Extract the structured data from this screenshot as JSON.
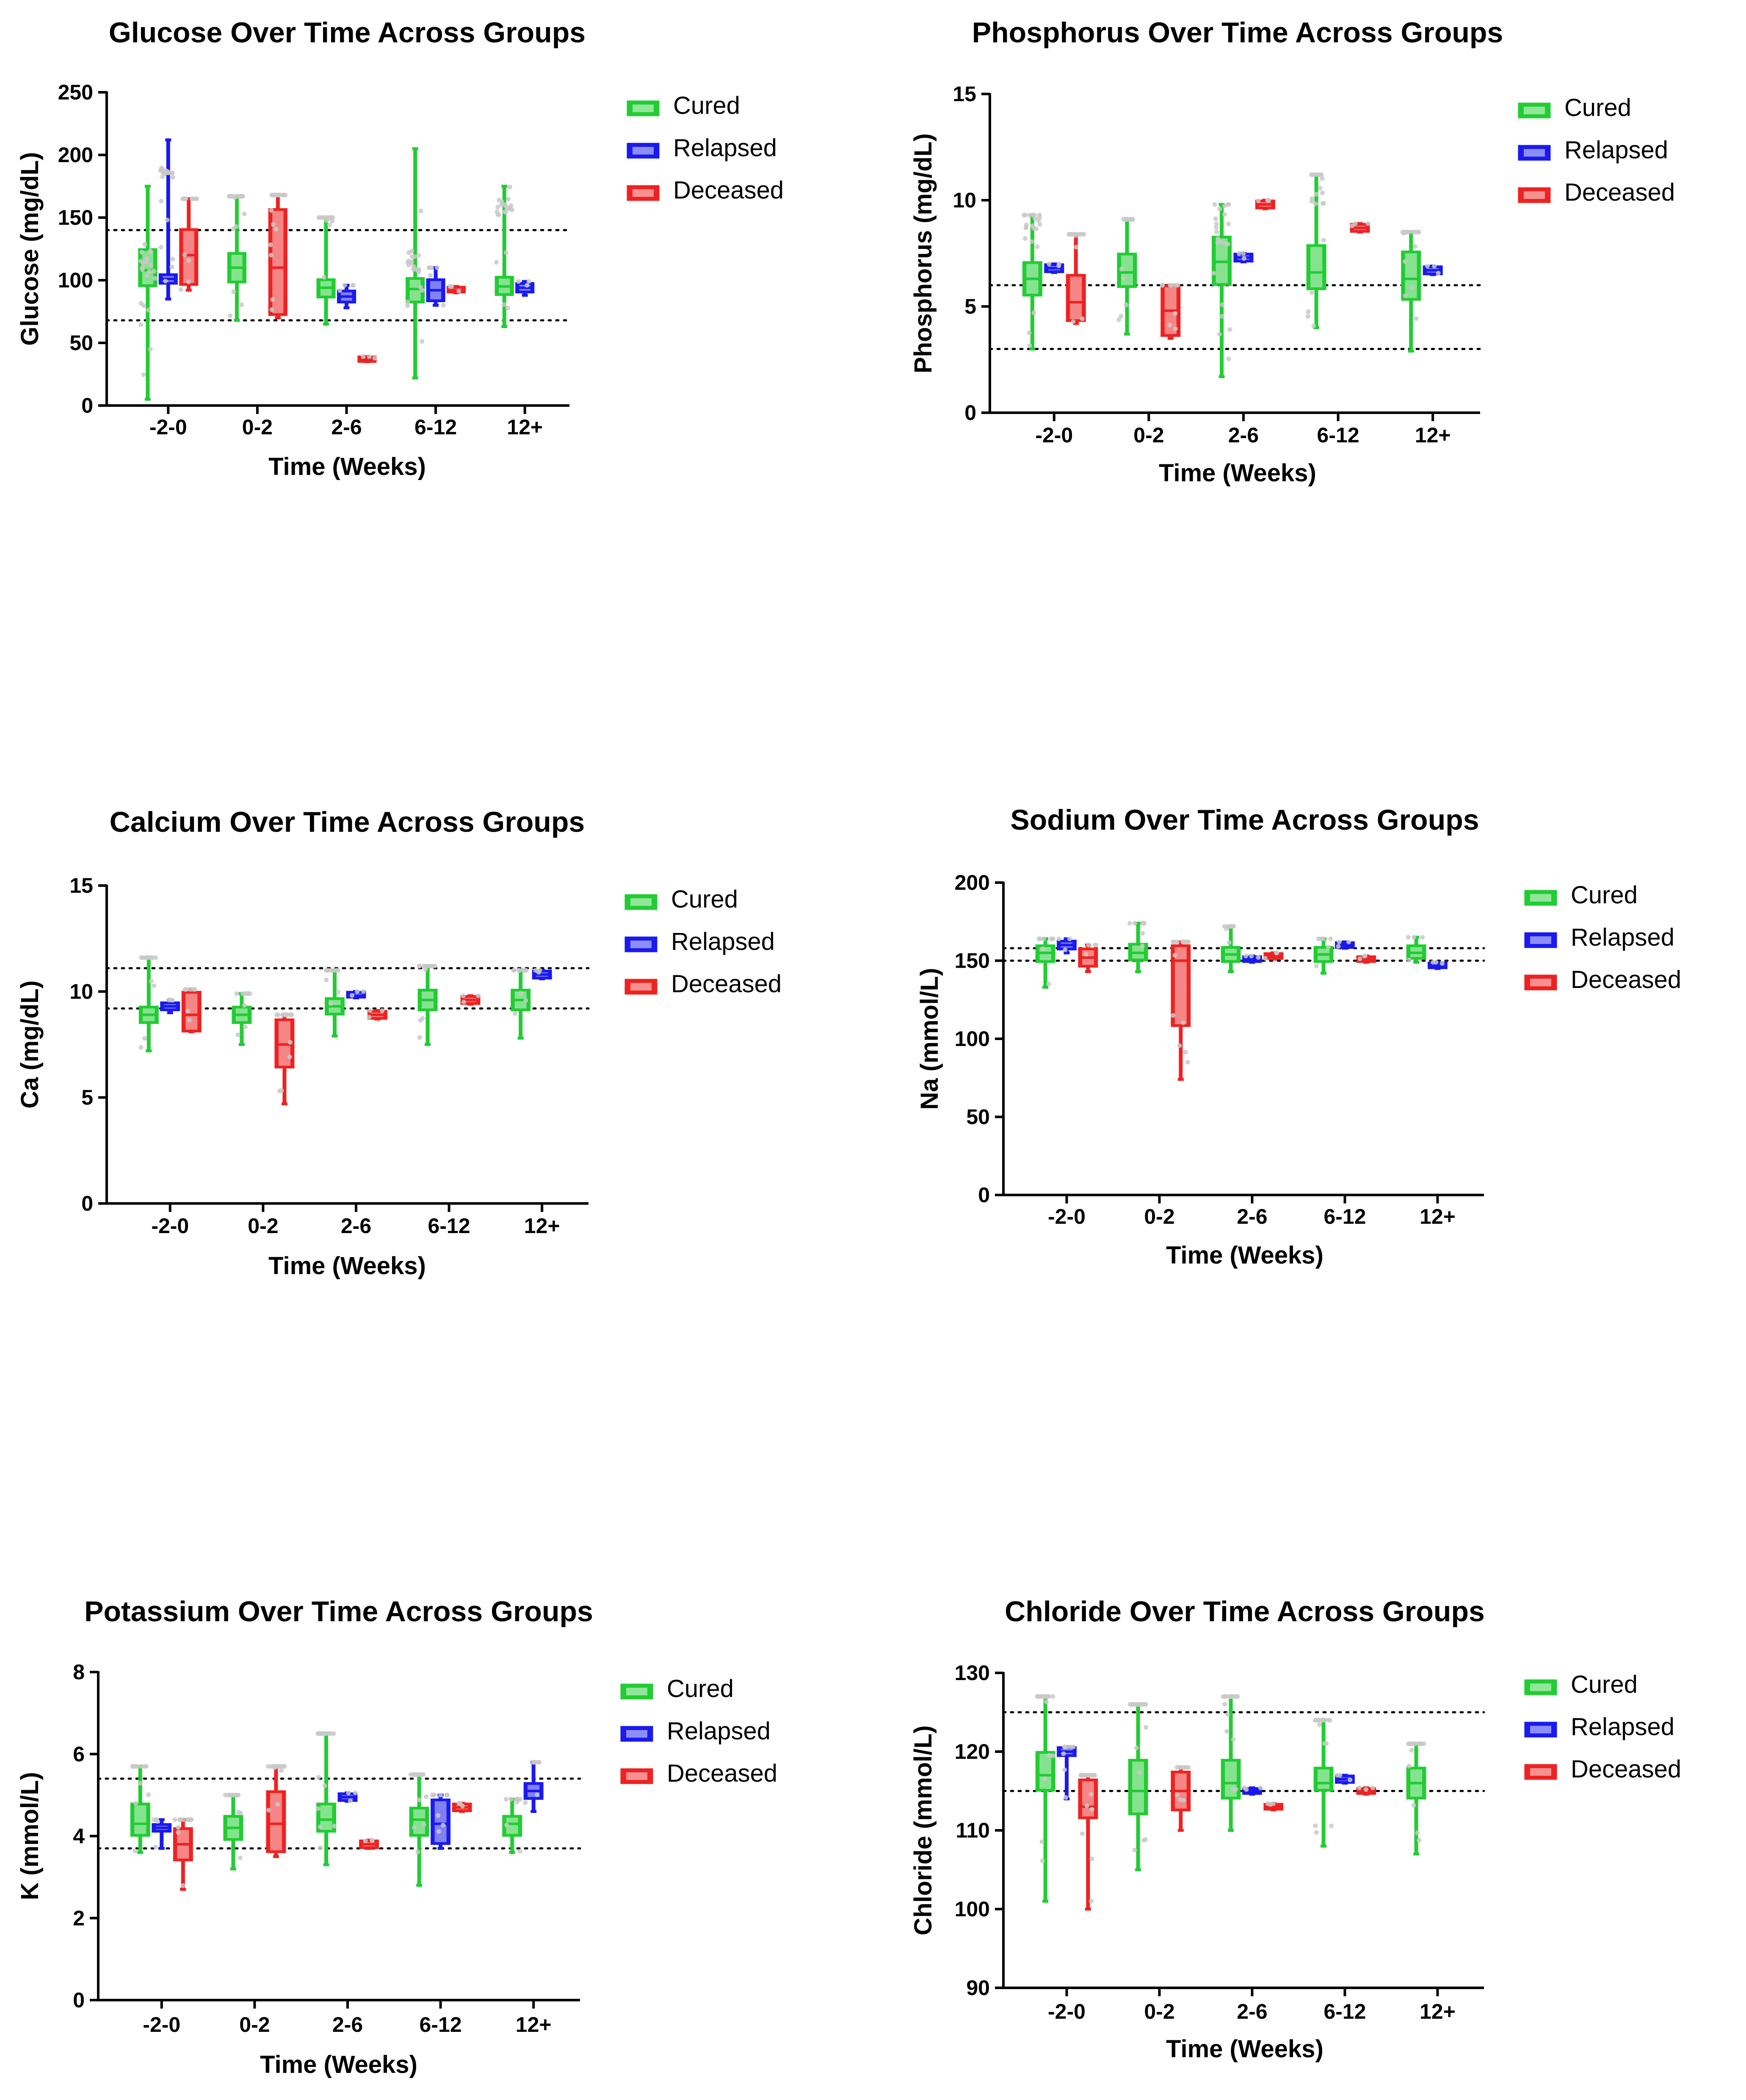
{
  "colors": {
    "cured": "#22cc33",
    "relapsed": "#1a1aee",
    "deceased": "#ee2222",
    "point": "#c9c9c9",
    "axis": "#000000"
  },
  "legend_labels": [
    "Cured",
    "Relapsed",
    "Deceased"
  ],
  "chart_data": [
    {
      "type": "box",
      "id": "glucose",
      "title": "Glucose Over Time Across Groups",
      "xlabel": "Time (Weeks)",
      "ylabel": "Glucose (mg/dL)",
      "ylim": [
        0,
        250
      ],
      "yticks": [
        0,
        50,
        100,
        150,
        200,
        250
      ],
      "ref_lines": [
        68,
        140
      ],
      "categories": [
        "-2-0",
        "0-2",
        "2-6",
        "6-12",
        "12+"
      ],
      "series": [
        {
          "name": "Cured",
          "boxes": [
            {
              "min": 5,
              "q1": 95,
              "median": 108,
              "q3": 125,
              "max": 175
            },
            {
              "min": 68,
              "q1": 98,
              "median": 110,
              "q3": 122,
              "max": 167
            },
            {
              "min": 65,
              "q1": 86,
              "median": 94,
              "q3": 101,
              "max": 150
            },
            {
              "min": 22,
              "q1": 82,
              "median": 93,
              "q3": 102,
              "max": 205
            },
            {
              "min": 63,
              "q1": 88,
              "median": 95,
              "q3": 103,
              "max": 175
            }
          ]
        },
        {
          "name": "Relapsed",
          "boxes": [
            {
              "min": 85,
              "q1": 97,
              "median": 101,
              "q3": 105,
              "max": 212
            },
            null,
            {
              "min": 78,
              "q1": 82,
              "median": 87,
              "q3": 92,
              "max": 96
            },
            {
              "min": 80,
              "q1": 83,
              "median": 92,
              "q3": 101,
              "max": 110
            },
            {
              "min": 88,
              "q1": 90,
              "median": 94,
              "q3": 98,
              "max": 99
            }
          ]
        },
        {
          "name": "Deceased",
          "boxes": [
            {
              "min": 92,
              "q1": 96,
              "median": 120,
              "q3": 141,
              "max": 165
            },
            {
              "min": 70,
              "q1": 72,
              "median": 110,
              "q3": 157,
              "max": 168
            },
            {
              "min": 35,
              "q1": 35,
              "median": 37,
              "q3": 39,
              "max": 39
            },
            {
              "min": 90,
              "q1": 90,
              "median": 92,
              "q3": 95,
              "max": 95
            },
            null
          ]
        }
      ]
    },
    {
      "type": "box",
      "id": "phosphorus",
      "title": "Phosphorus Over Time Across Groups",
      "xlabel": "Time (Weeks)",
      "ylabel": "Phosphorus (mg/dL)",
      "ylim": [
        0,
        15
      ],
      "yticks": [
        0,
        5,
        10,
        15
      ],
      "ref_lines": [
        3,
        6
      ],
      "categories": [
        "-2-0",
        "0-2",
        "2-6",
        "6-12",
        "12+"
      ],
      "series": [
        {
          "name": "Cured",
          "boxes": [
            {
              "min": 3.0,
              "q1": 5.5,
              "median": 6.3,
              "q3": 7.1,
              "max": 9.3
            },
            {
              "min": 3.7,
              "q1": 5.9,
              "median": 6.6,
              "q3": 7.5,
              "max": 9.1
            },
            {
              "min": 1.7,
              "q1": 6.0,
              "median": 7.1,
              "q3": 8.3,
              "max": 9.8
            },
            {
              "min": 4.0,
              "q1": 5.8,
              "median": 6.6,
              "q3": 7.9,
              "max": 11.2
            },
            {
              "min": 2.9,
              "q1": 5.3,
              "median": 6.3,
              "q3": 7.6,
              "max": 8.5
            }
          ]
        },
        {
          "name": "Relapsed",
          "boxes": [
            {
              "min": 6.6,
              "q1": 6.6,
              "median": 6.8,
              "q3": 7.0,
              "max": 7.0
            },
            null,
            {
              "min": 7.1,
              "q1": 7.1,
              "median": 7.3,
              "q3": 7.5,
              "max": 7.5
            },
            null,
            {
              "min": 6.5,
              "q1": 6.5,
              "median": 6.7,
              "q3": 6.9,
              "max": 6.9
            }
          ]
        },
        {
          "name": "Deceased",
          "boxes": [
            {
              "min": 4.2,
              "q1": 4.3,
              "median": 5.2,
              "q3": 6.5,
              "max": 8.4
            },
            {
              "min": 3.5,
              "q1": 3.6,
              "median": 4.8,
              "q3": 6.0,
              "max": 6.0
            },
            {
              "min": 9.6,
              "q1": 9.6,
              "median": 9.8,
              "q3": 10.0,
              "max": 10.0
            },
            {
              "min": 8.5,
              "q1": 8.5,
              "median": 8.7,
              "q3": 8.9,
              "max": 8.9
            },
            null
          ]
        }
      ]
    },
    {
      "type": "box",
      "id": "calcium",
      "title": "Calcium Over Time Across Groups",
      "xlabel": "Time (Weeks)",
      "ylabel": "Ca (mg/dL)",
      "ylim": [
        0,
        15
      ],
      "yticks": [
        0,
        5,
        10,
        15
      ],
      "ref_lines": [
        9.2,
        11.1
      ],
      "categories": [
        "-2-0",
        "0-2",
        "2-6",
        "6-12",
        "12+"
      ],
      "series": [
        {
          "name": "Cured",
          "boxes": [
            {
              "min": 7.2,
              "q1": 8.5,
              "median": 8.9,
              "q3": 9.3,
              "max": 11.6
            },
            {
              "min": 7.5,
              "q1": 8.5,
              "median": 8.9,
              "q3": 9.3,
              "max": 9.9
            },
            {
              "min": 7.9,
              "q1": 8.9,
              "median": 9.3,
              "q3": 9.7,
              "max": 11.0
            },
            {
              "min": 7.5,
              "q1": 9.1,
              "median": 9.6,
              "q3": 10.1,
              "max": 11.2
            },
            {
              "min": 7.8,
              "q1": 9.1,
              "median": 9.6,
              "q3": 10.1,
              "max": 11.0
            }
          ]
        },
        {
          "name": "Relapsed",
          "boxes": [
            {
              "min": 9.0,
              "q1": 9.1,
              "median": 9.3,
              "q3": 9.5,
              "max": 9.6
            },
            null,
            {
              "min": 9.7,
              "q1": 9.7,
              "median": 9.8,
              "q3": 10.0,
              "max": 10.0
            },
            null,
            {
              "min": 10.6,
              "q1": 10.6,
              "median": 10.8,
              "q3": 11.0,
              "max": 11.0
            }
          ]
        },
        {
          "name": "Deceased",
          "boxes": [
            {
              "min": 8.1,
              "q1": 8.1,
              "median": 8.9,
              "q3": 10.0,
              "max": 10.1
            },
            {
              "min": 4.7,
              "q1": 6.4,
              "median": 7.5,
              "q3": 8.7,
              "max": 8.9
            },
            {
              "min": 8.7,
              "q1": 8.7,
              "median": 8.9,
              "q3": 9.1,
              "max": 9.1
            },
            {
              "min": 9.4,
              "q1": 9.4,
              "median": 9.6,
              "q3": 9.8,
              "max": 9.8
            },
            null
          ]
        }
      ]
    },
    {
      "type": "box",
      "id": "sodium",
      "title": "Sodium Over Time Across Groups",
      "xlabel": "Time (Weeks)",
      "ylabel": "Na (mmol/L)",
      "ylim": [
        0,
        200
      ],
      "yticks": [
        0,
        50,
        100,
        150,
        200
      ],
      "ref_lines": [
        150,
        158
      ],
      "categories": [
        "-2-0",
        "0-2",
        "2-6",
        "6-12",
        "12+"
      ],
      "series": [
        {
          "name": "Cured",
          "boxes": [
            {
              "min": 133,
              "q1": 149,
              "median": 155,
              "q3": 160,
              "max": 164
            },
            {
              "min": 143,
              "q1": 150,
              "median": 155,
              "q3": 161,
              "max": 174
            },
            {
              "min": 143,
              "q1": 149,
              "median": 154,
              "q3": 159,
              "max": 172
            },
            {
              "min": 142,
              "q1": 149,
              "median": 154,
              "q3": 159,
              "max": 164
            },
            {
              "min": 149,
              "q1": 151,
              "median": 155,
              "q3": 160,
              "max": 165
            }
          ]
        },
        {
          "name": "Relapsed",
          "boxes": [
            {
              "min": 155,
              "q1": 157,
              "median": 160,
              "q3": 163,
              "max": 164
            },
            null,
            {
              "min": 149,
              "q1": 149,
              "median": 151,
              "q3": 153,
              "max": 153
            },
            {
              "min": 158,
              "q1": 158,
              "median": 160,
              "q3": 162,
              "max": 162
            },
            {
              "min": 145,
              "q1": 145,
              "median": 147,
              "q3": 149,
              "max": 149
            }
          ]
        },
        {
          "name": "Deceased",
          "boxes": [
            {
              "min": 143,
              "q1": 146,
              "median": 152,
              "q3": 158,
              "max": 160
            },
            {
              "min": 74,
              "q1": 108,
              "median": 150,
              "q3": 160,
              "max": 162
            },
            {
              "min": 151,
              "q1": 151,
              "median": 153,
              "q3": 155,
              "max": 155
            },
            {
              "min": 149,
              "q1": 149,
              "median": 151,
              "q3": 153,
              "max": 153
            },
            null
          ]
        }
      ]
    },
    {
      "type": "box",
      "id": "potassium",
      "title": "Potassium Over Time Across Groups",
      "xlabel": "Time (Weeks)",
      "ylabel": "K (mmol/L)",
      "ylim": [
        0,
        8
      ],
      "yticks": [
        0,
        2,
        4,
        6,
        8
      ],
      "ref_lines": [
        3.7,
        5.4
      ],
      "categories": [
        "-2-0",
        "0-2",
        "2-6",
        "6-12",
        "12+"
      ],
      "series": [
        {
          "name": "Cured",
          "boxes": [
            {
              "min": 3.6,
              "q1": 4.0,
              "median": 4.3,
              "q3": 4.8,
              "max": 5.7
            },
            {
              "min": 3.2,
              "q1": 3.9,
              "median": 4.2,
              "q3": 4.5,
              "max": 5.0
            },
            {
              "min": 3.3,
              "q1": 4.1,
              "median": 4.4,
              "q3": 4.8,
              "max": 6.5
            },
            {
              "min": 2.8,
              "q1": 4.0,
              "median": 4.4,
              "q3": 4.7,
              "max": 5.5
            },
            {
              "min": 3.6,
              "q1": 4.0,
              "median": 4.3,
              "q3": 4.5,
              "max": 4.9
            }
          ]
        },
        {
          "name": "Relapsed",
          "boxes": [
            {
              "min": 3.7,
              "q1": 4.1,
              "median": 4.2,
              "q3": 4.3,
              "max": 4.4
            },
            null,
            {
              "min": 4.85,
              "q1": 4.85,
              "median": 4.95,
              "q3": 5.05,
              "max": 5.05
            },
            {
              "min": 3.7,
              "q1": 3.8,
              "median": 4.3,
              "q3": 4.9,
              "max": 5.0
            },
            {
              "min": 4.6,
              "q1": 4.9,
              "median": 5.1,
              "q3": 5.3,
              "max": 5.8
            }
          ]
        },
        {
          "name": "Deceased",
          "boxes": [
            {
              "min": 2.7,
              "q1": 3.4,
              "median": 3.8,
              "q3": 4.2,
              "max": 4.4
            },
            {
              "min": 3.5,
              "q1": 3.6,
              "median": 4.3,
              "q3": 5.1,
              "max": 5.7
            },
            {
              "min": 3.7,
              "q1": 3.7,
              "median": 3.8,
              "q3": 3.9,
              "max": 3.9
            },
            {
              "min": 4.6,
              "q1": 4.6,
              "median": 4.7,
              "q3": 4.8,
              "max": 4.8
            },
            null
          ]
        }
      ]
    },
    {
      "type": "box",
      "id": "chloride",
      "title": "Chloride Over Time Across Groups",
      "xlabel": "Time (Weeks)",
      "ylabel": "Chloride (mmol/L)",
      "ylim": [
        90,
        130
      ],
      "yticks": [
        90,
        100,
        110,
        120,
        130
      ],
      "ref_lines": [
        115,
        125
      ],
      "categories": [
        "-2-0",
        "0-2",
        "2-6",
        "6-12",
        "12+"
      ],
      "series": [
        {
          "name": "Cured",
          "boxes": [
            {
              "min": 101,
              "q1": 115,
              "median": 117,
              "q3": 120,
              "max": 127
            },
            {
              "min": 105,
              "q1": 112,
              "median": 115,
              "q3": 119,
              "max": 126
            },
            {
              "min": 110,
              "q1": 114,
              "median": 116,
              "q3": 119,
              "max": 127
            },
            {
              "min": 108,
              "q1": 115,
              "median": 116,
              "q3": 118,
              "max": 124
            },
            {
              "min": 107,
              "q1": 114,
              "median": 116,
              "q3": 118,
              "max": 121
            }
          ]
        },
        {
          "name": "Relapsed",
          "boxes": [
            {
              "min": 114,
              "q1": 119.4,
              "median": 120,
              "q3": 120.6,
              "max": 120.6
            },
            null,
            {
              "min": 114.6,
              "q1": 114.6,
              "median": 115,
              "q3": 115.4,
              "max": 115.4
            },
            {
              "min": 116,
              "q1": 116,
              "median": 116.5,
              "q3": 117,
              "max": 117
            },
            null
          ]
        },
        {
          "name": "Deceased",
          "boxes": [
            {
              "min": 100,
              "q1": 111.5,
              "median": 113,
              "q3": 116.5,
              "max": 117
            },
            {
              "min": 110,
              "q1": 112.5,
              "median": 115,
              "q3": 117.5,
              "max": 118
            },
            {
              "min": 112.6,
              "q1": 112.6,
              "median": 113,
              "q3": 113.4,
              "max": 113.4
            },
            {
              "min": 114.6,
              "q1": 114.6,
              "median": 115,
              "q3": 115.4,
              "max": 115.4
            },
            null
          ]
        }
      ]
    }
  ]
}
